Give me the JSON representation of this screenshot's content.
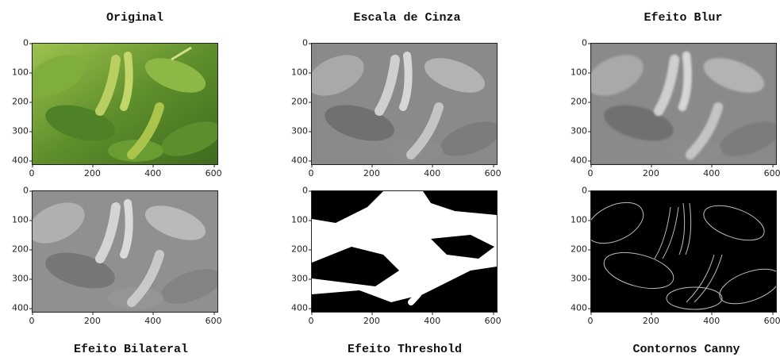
{
  "titles": {
    "original": "Original",
    "gray": "Escala de Cinza",
    "blur": "Efeito Blur",
    "bilateral": "Efeito Bilateral",
    "threshold": "Efeito Threshold",
    "canny": "Contornos Canny"
  },
  "axes": {
    "y_ticks": [
      "0",
      "100",
      "200",
      "300",
      "400"
    ],
    "x_ticks": [
      "0",
      "200",
      "400",
      "600"
    ],
    "x_range": [
      0,
      610
    ],
    "y_range": [
      0,
      410
    ]
  },
  "colors": {
    "green_dark": "#3e6b1f",
    "green_mid": "#6f9a35",
    "green_light": "#b9cf62",
    "pod": "#a7c04a"
  }
}
